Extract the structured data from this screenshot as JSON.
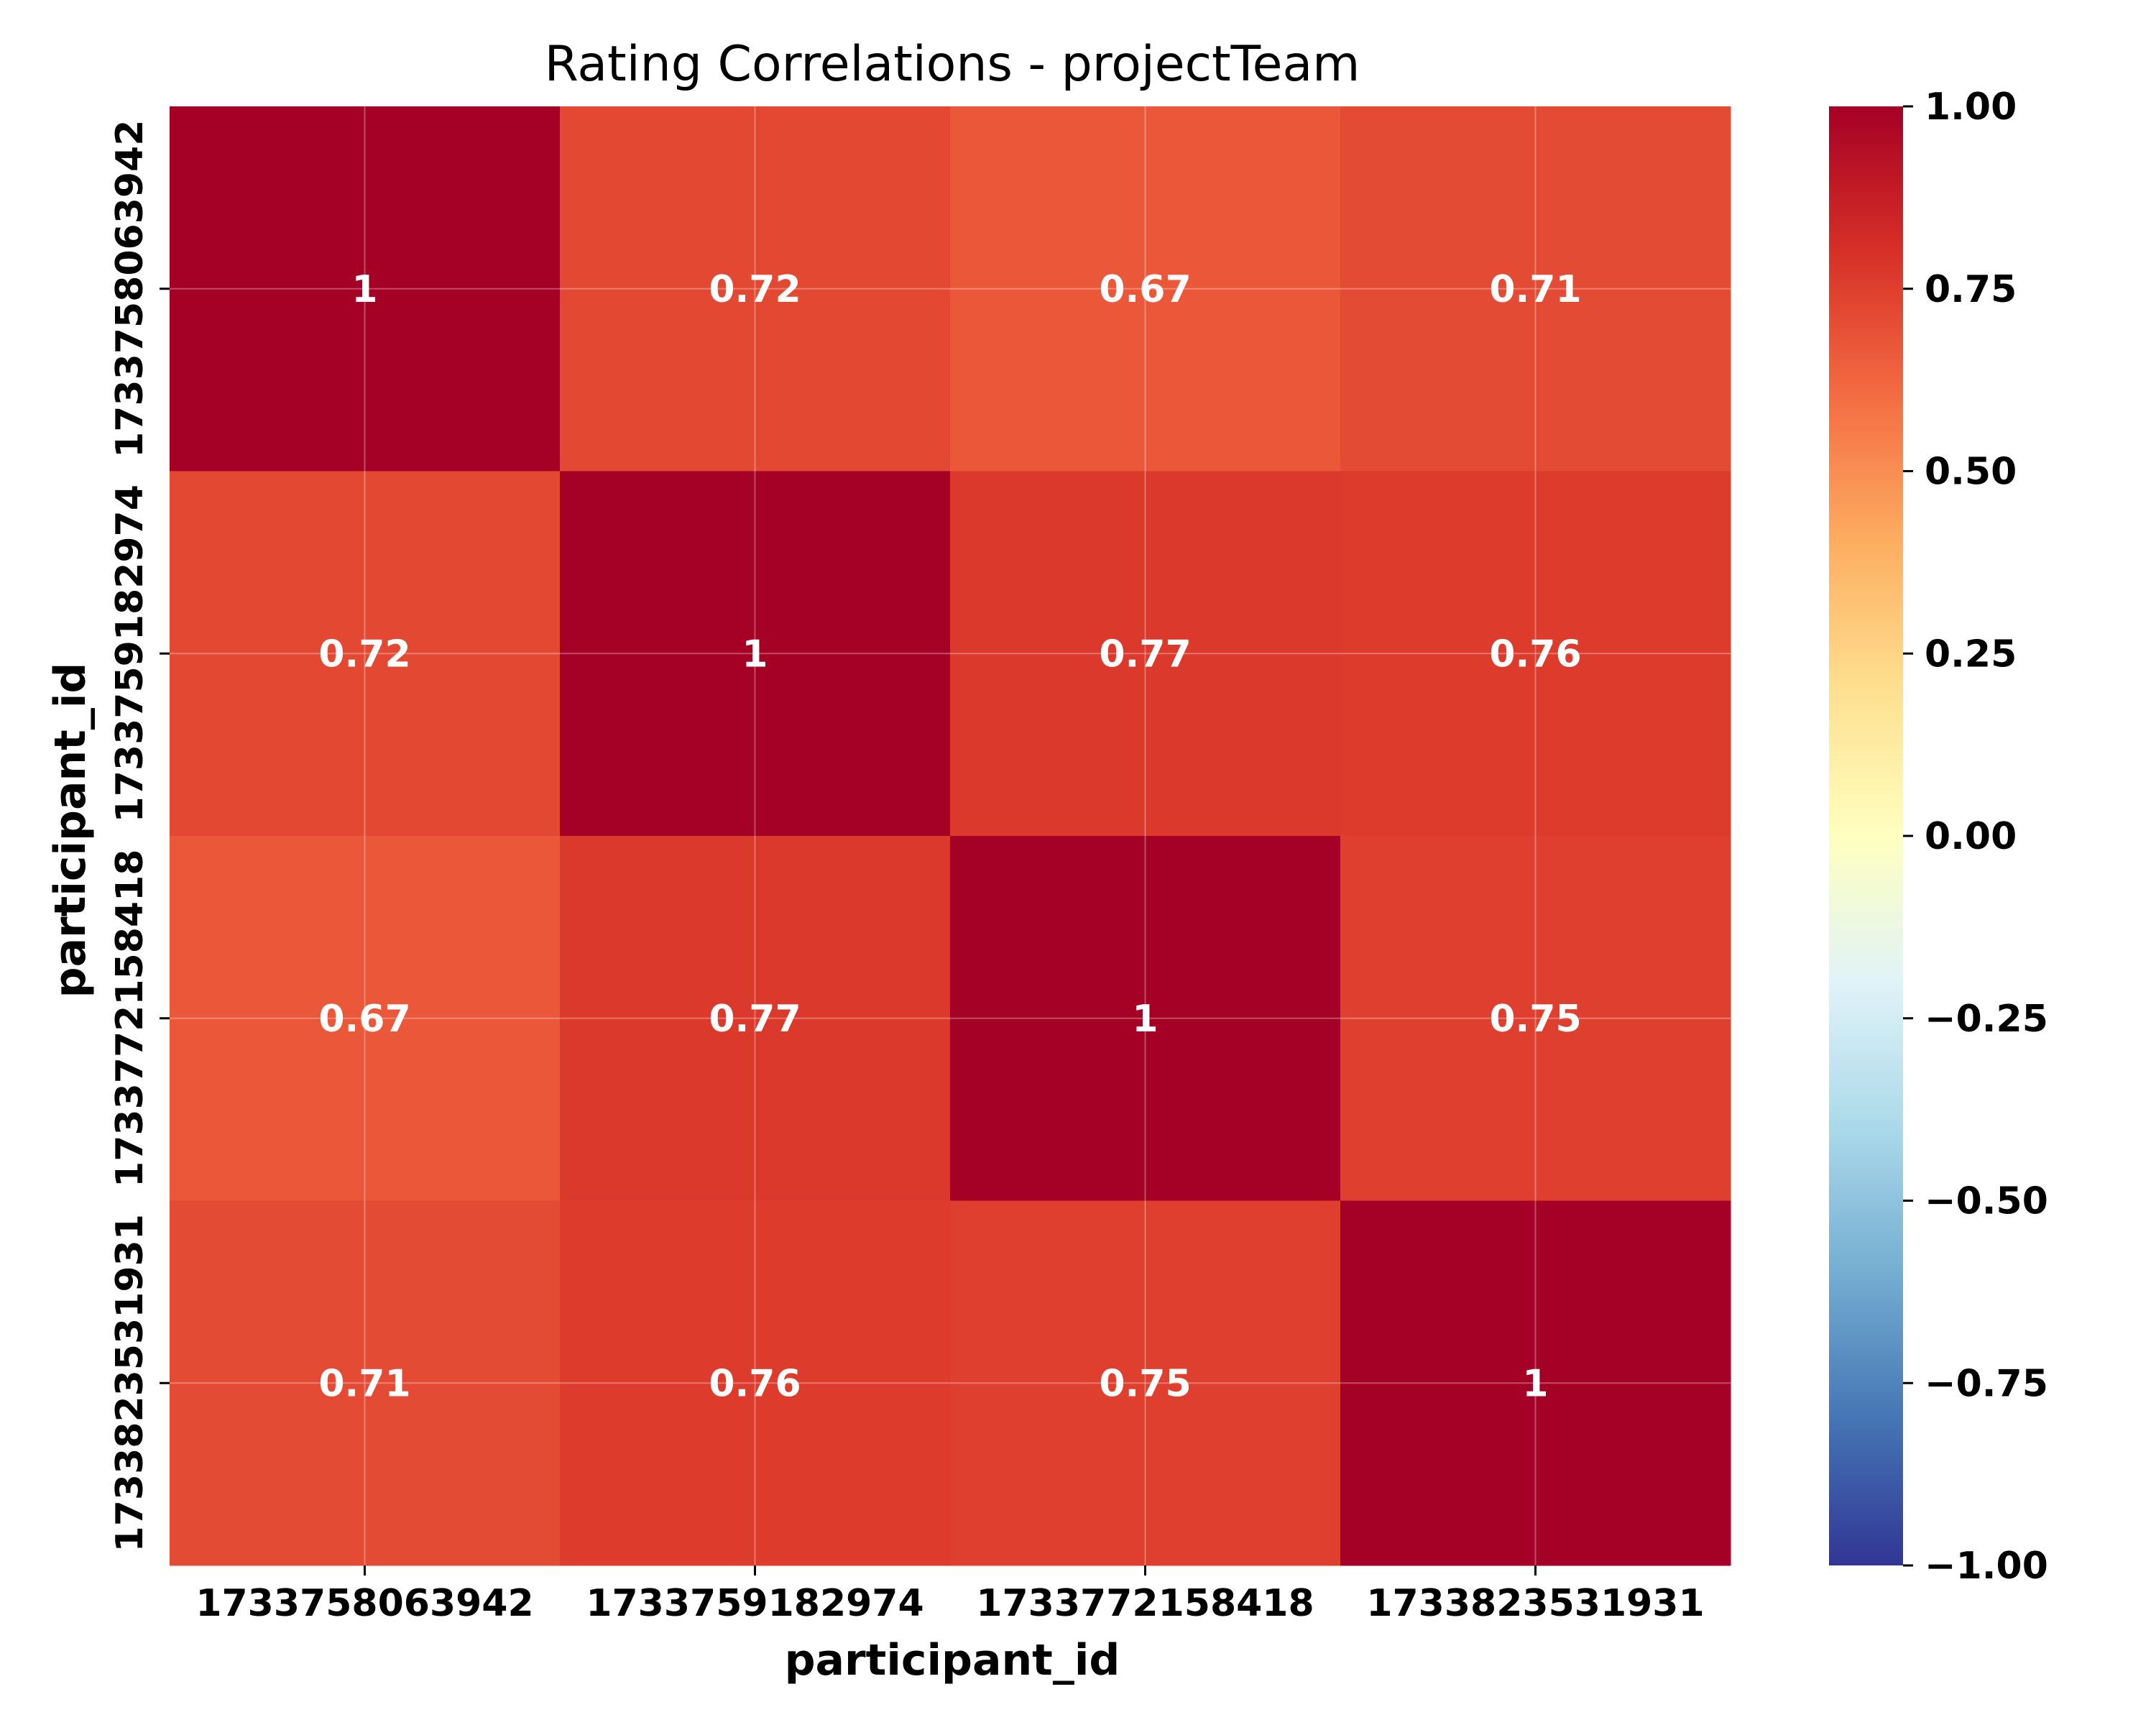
{
  "chart_data": {
    "type": "heatmap",
    "title": "Rating Correlations - projectTeam",
    "xlabel": "participant_id",
    "ylabel": "participant_id",
    "x_categories": [
      "1733758063942",
      "1733759182974",
      "1733772158418",
      "1733823531931"
    ],
    "y_categories": [
      "1733758063942",
      "1733759182974",
      "1733772158418",
      "1733823531931"
    ],
    "values": [
      [
        1,
        0.72,
        0.67,
        0.71
      ],
      [
        0.72,
        1,
        0.77,
        0.76
      ],
      [
        0.67,
        0.77,
        1,
        0.75
      ],
      [
        0.71,
        0.76,
        0.75,
        1
      ]
    ],
    "cell_labels": [
      [
        "1",
        "0.72",
        "0.67",
        "0.71"
      ],
      [
        "0.72",
        "1",
        "0.77",
        "0.76"
      ],
      [
        "0.67",
        "0.77",
        "1",
        "0.75"
      ],
      [
        "0.71",
        "0.76",
        "0.75",
        "1"
      ]
    ],
    "colormap": "RdYlBu_r",
    "colorbar": {
      "range": [
        -1,
        1
      ],
      "ticks": [
        1,
        0.75,
        0.5,
        0.25,
        0,
        -0.25,
        -0.5,
        -0.75,
        -1
      ],
      "tick_labels": [
        "1.00",
        "0.75",
        "0.50",
        "0.25",
        "0.00",
        "−0.25",
        "−0.50",
        "−0.75",
        "−1.00"
      ]
    },
    "grid": true
  }
}
